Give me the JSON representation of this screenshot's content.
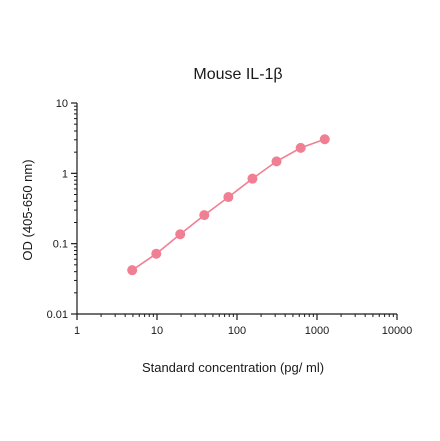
{
  "chart_data": {
    "type": "line",
    "title": "Mouse IL-1β",
    "xlabel": "Standard concentration (pg/ ml)",
    "ylabel": "OD (405-650 nm)",
    "x_scale": "log",
    "y_scale": "log",
    "xlim": [
      1,
      10000
    ],
    "ylim": [
      0.01,
      10
    ],
    "x_ticks": [
      1,
      10,
      100,
      1000,
      10000
    ],
    "x_tick_labels": [
      "1",
      "10",
      "100",
      "1000",
      "10000"
    ],
    "y_ticks": [
      0.01,
      0.1,
      1,
      10
    ],
    "y_tick_labels": [
      "0.01",
      "0.1",
      "1",
      "10"
    ],
    "grid": false,
    "legend": "none",
    "series": [
      {
        "color": "#f07f94",
        "x": [
          4.9,
          9.8,
          19.5,
          39,
          78,
          156,
          312,
          625,
          1250
        ],
        "y": [
          0.042,
          0.072,
          0.136,
          0.255,
          0.46,
          0.84,
          1.48,
          2.3,
          3.05
        ]
      }
    ]
  }
}
